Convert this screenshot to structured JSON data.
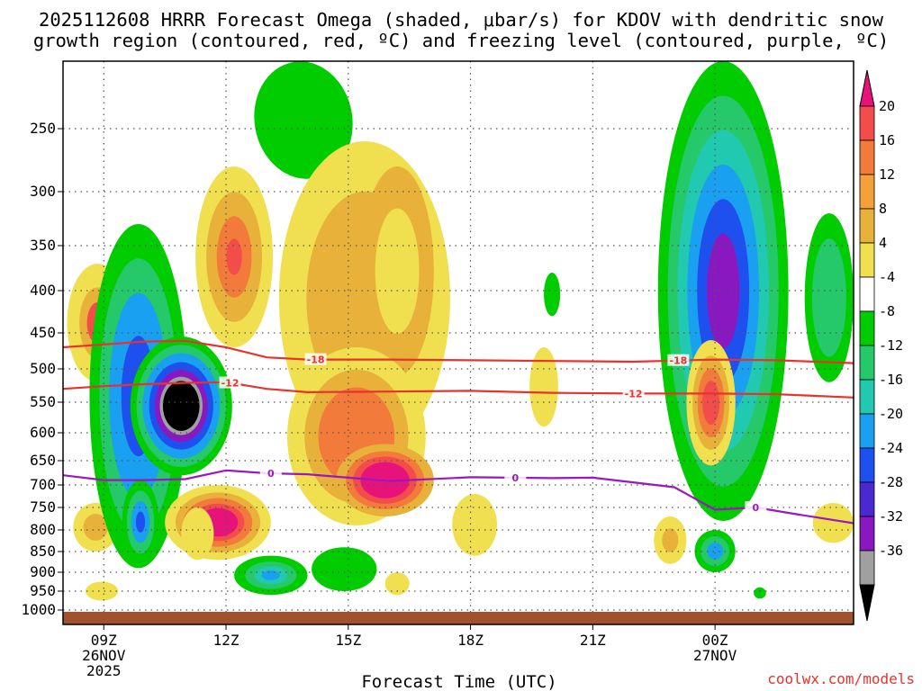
{
  "chart_data": {
    "type": "heatmap",
    "title_line1": "2025112608 HRRR Forecast Omega (shaded, μbar/s) for KDOV with dendritic snow",
    "title_line2": "growth region (contoured, red, ºC) and freezing level (contoured, purple, ºC)",
    "xlabel": "Forecast Time (UTC)",
    "credit": "coolwx.com/models",
    "x_range_hours": [
      8,
      27.4
    ],
    "y_range_hPa": [
      1030,
      200
    ],
    "y_ticks": [
      {
        "label": "250",
        "value": 250
      },
      {
        "label": "300",
        "value": 300
      },
      {
        "label": "350",
        "value": 350
      },
      {
        "label": "400",
        "value": 400
      },
      {
        "label": "450",
        "value": 450
      },
      {
        "label": "500",
        "value": 500
      },
      {
        "label": "550",
        "value": 550
      },
      {
        "label": "600",
        "value": 600
      },
      {
        "label": "650",
        "value": 650
      },
      {
        "label": "700",
        "value": 700
      },
      {
        "label": "750",
        "value": 750
      },
      {
        "label": "800",
        "value": 800
      },
      {
        "label": "850",
        "value": 850
      },
      {
        "label": "900",
        "value": 900
      },
      {
        "label": "950",
        "value": 950
      },
      {
        "label": "1000",
        "value": 1000
      }
    ],
    "x_ticks": [
      {
        "hour": 9,
        "line1": "09Z",
        "line2": "26NOV",
        "line3": "2025"
      },
      {
        "hour": 12,
        "line1": "12Z",
        "line2": "",
        "line3": ""
      },
      {
        "hour": 15,
        "line1": "15Z",
        "line2": "",
        "line3": ""
      },
      {
        "hour": 18,
        "line1": "18Z",
        "line2": "",
        "line3": ""
      },
      {
        "hour": 21,
        "line1": "21Z",
        "line2": "",
        "line3": ""
      },
      {
        "hour": 24,
        "line1": "00Z",
        "line2": "27NOV",
        "line3": ""
      }
    ],
    "colorbar": {
      "labels": [
        "20",
        "16",
        "12",
        "8",
        "4",
        "-4",
        "-8",
        "-12",
        "-16",
        "-20",
        "-24",
        "-28",
        "-32",
        "-36"
      ],
      "colors": [
        "#e8137a",
        "#f24d4a",
        "#f27a3a",
        "#f5a13a",
        "#e8b23a",
        "#f0e050",
        "#ffffff",
        "#00cc00",
        "#25c96a",
        "#20c9b0",
        "#1aa0f0",
        "#1e50f0",
        "#4a2ad0",
        "#8a18c0",
        "#a0a0a0",
        "#000000"
      ]
    },
    "omega_features": [
      {
        "name": "mid-level-updraft-core",
        "hour": 10.9,
        "p": 570,
        "value": -40,
        "cores": [
          [
            0.95,
            "#00cc00"
          ],
          [
            0.8,
            "#25c96a"
          ],
          [
            0.65,
            "#1aa0f0"
          ],
          [
            0.5,
            "#1e50f0"
          ],
          [
            0.4,
            "#8a18c0"
          ],
          [
            0.33,
            "#a0a0a0"
          ],
          [
            0.28,
            "#000000"
          ]
        ]
      },
      {
        "name": "low-level-subsidence",
        "hour": 11.7,
        "p": 790,
        "value": 20
      },
      {
        "name": "mid-level-subsidence",
        "hour": 15.9,
        "p": 690,
        "value": 20
      },
      {
        "name": "upper-ascent-00z",
        "hour": 24.0,
        "p": 300,
        "value": -24
      },
      {
        "name": "subsidence-00z",
        "hour": 24.0,
        "p": 600,
        "value": 12
      }
    ],
    "series": [
      {
        "name": "-18",
        "color": "#e8322e",
        "points": [
          [
            8,
            470
          ],
          [
            9,
            466
          ],
          [
            10,
            462
          ],
          [
            11,
            461
          ],
          [
            12,
            470
          ],
          [
            13,
            484
          ],
          [
            14,
            487
          ],
          [
            16,
            487
          ],
          [
            18,
            488
          ],
          [
            20,
            489
          ],
          [
            22,
            490
          ],
          [
            24,
            487
          ],
          [
            25.5,
            488
          ],
          [
            27.4,
            492
          ]
        ],
        "label_hours": [
          14.2,
          23.1
        ]
      },
      {
        "name": "-12",
        "color": "#e8322e",
        "points": [
          [
            8,
            530
          ],
          [
            9,
            526
          ],
          [
            10,
            523
          ],
          [
            11,
            521
          ],
          [
            12,
            520
          ],
          [
            13,
            530
          ],
          [
            14,
            535
          ],
          [
            16,
            534
          ],
          [
            18,
            533
          ],
          [
            20,
            536
          ],
          [
            22,
            537
          ],
          [
            24,
            537
          ],
          [
            25.5,
            538
          ],
          [
            27.4,
            543
          ]
        ],
        "label_hours": [
          12.1,
          22.0
        ]
      },
      {
        "name": "0",
        "color": "#9b18c0",
        "points": [
          [
            8,
            680
          ],
          [
            9,
            690
          ],
          [
            10,
            690
          ],
          [
            11,
            688
          ],
          [
            12,
            670
          ],
          [
            13,
            676
          ],
          [
            14,
            678
          ],
          [
            16,
            692
          ],
          [
            18,
            684
          ],
          [
            20,
            686
          ],
          [
            21,
            685
          ],
          [
            23,
            705
          ],
          [
            24,
            755
          ],
          [
            25,
            750
          ],
          [
            26,
            765
          ],
          [
            27.4,
            785
          ]
        ],
        "label_hours": [
          13.1,
          19.1,
          25.0
        ]
      }
    ]
  }
}
